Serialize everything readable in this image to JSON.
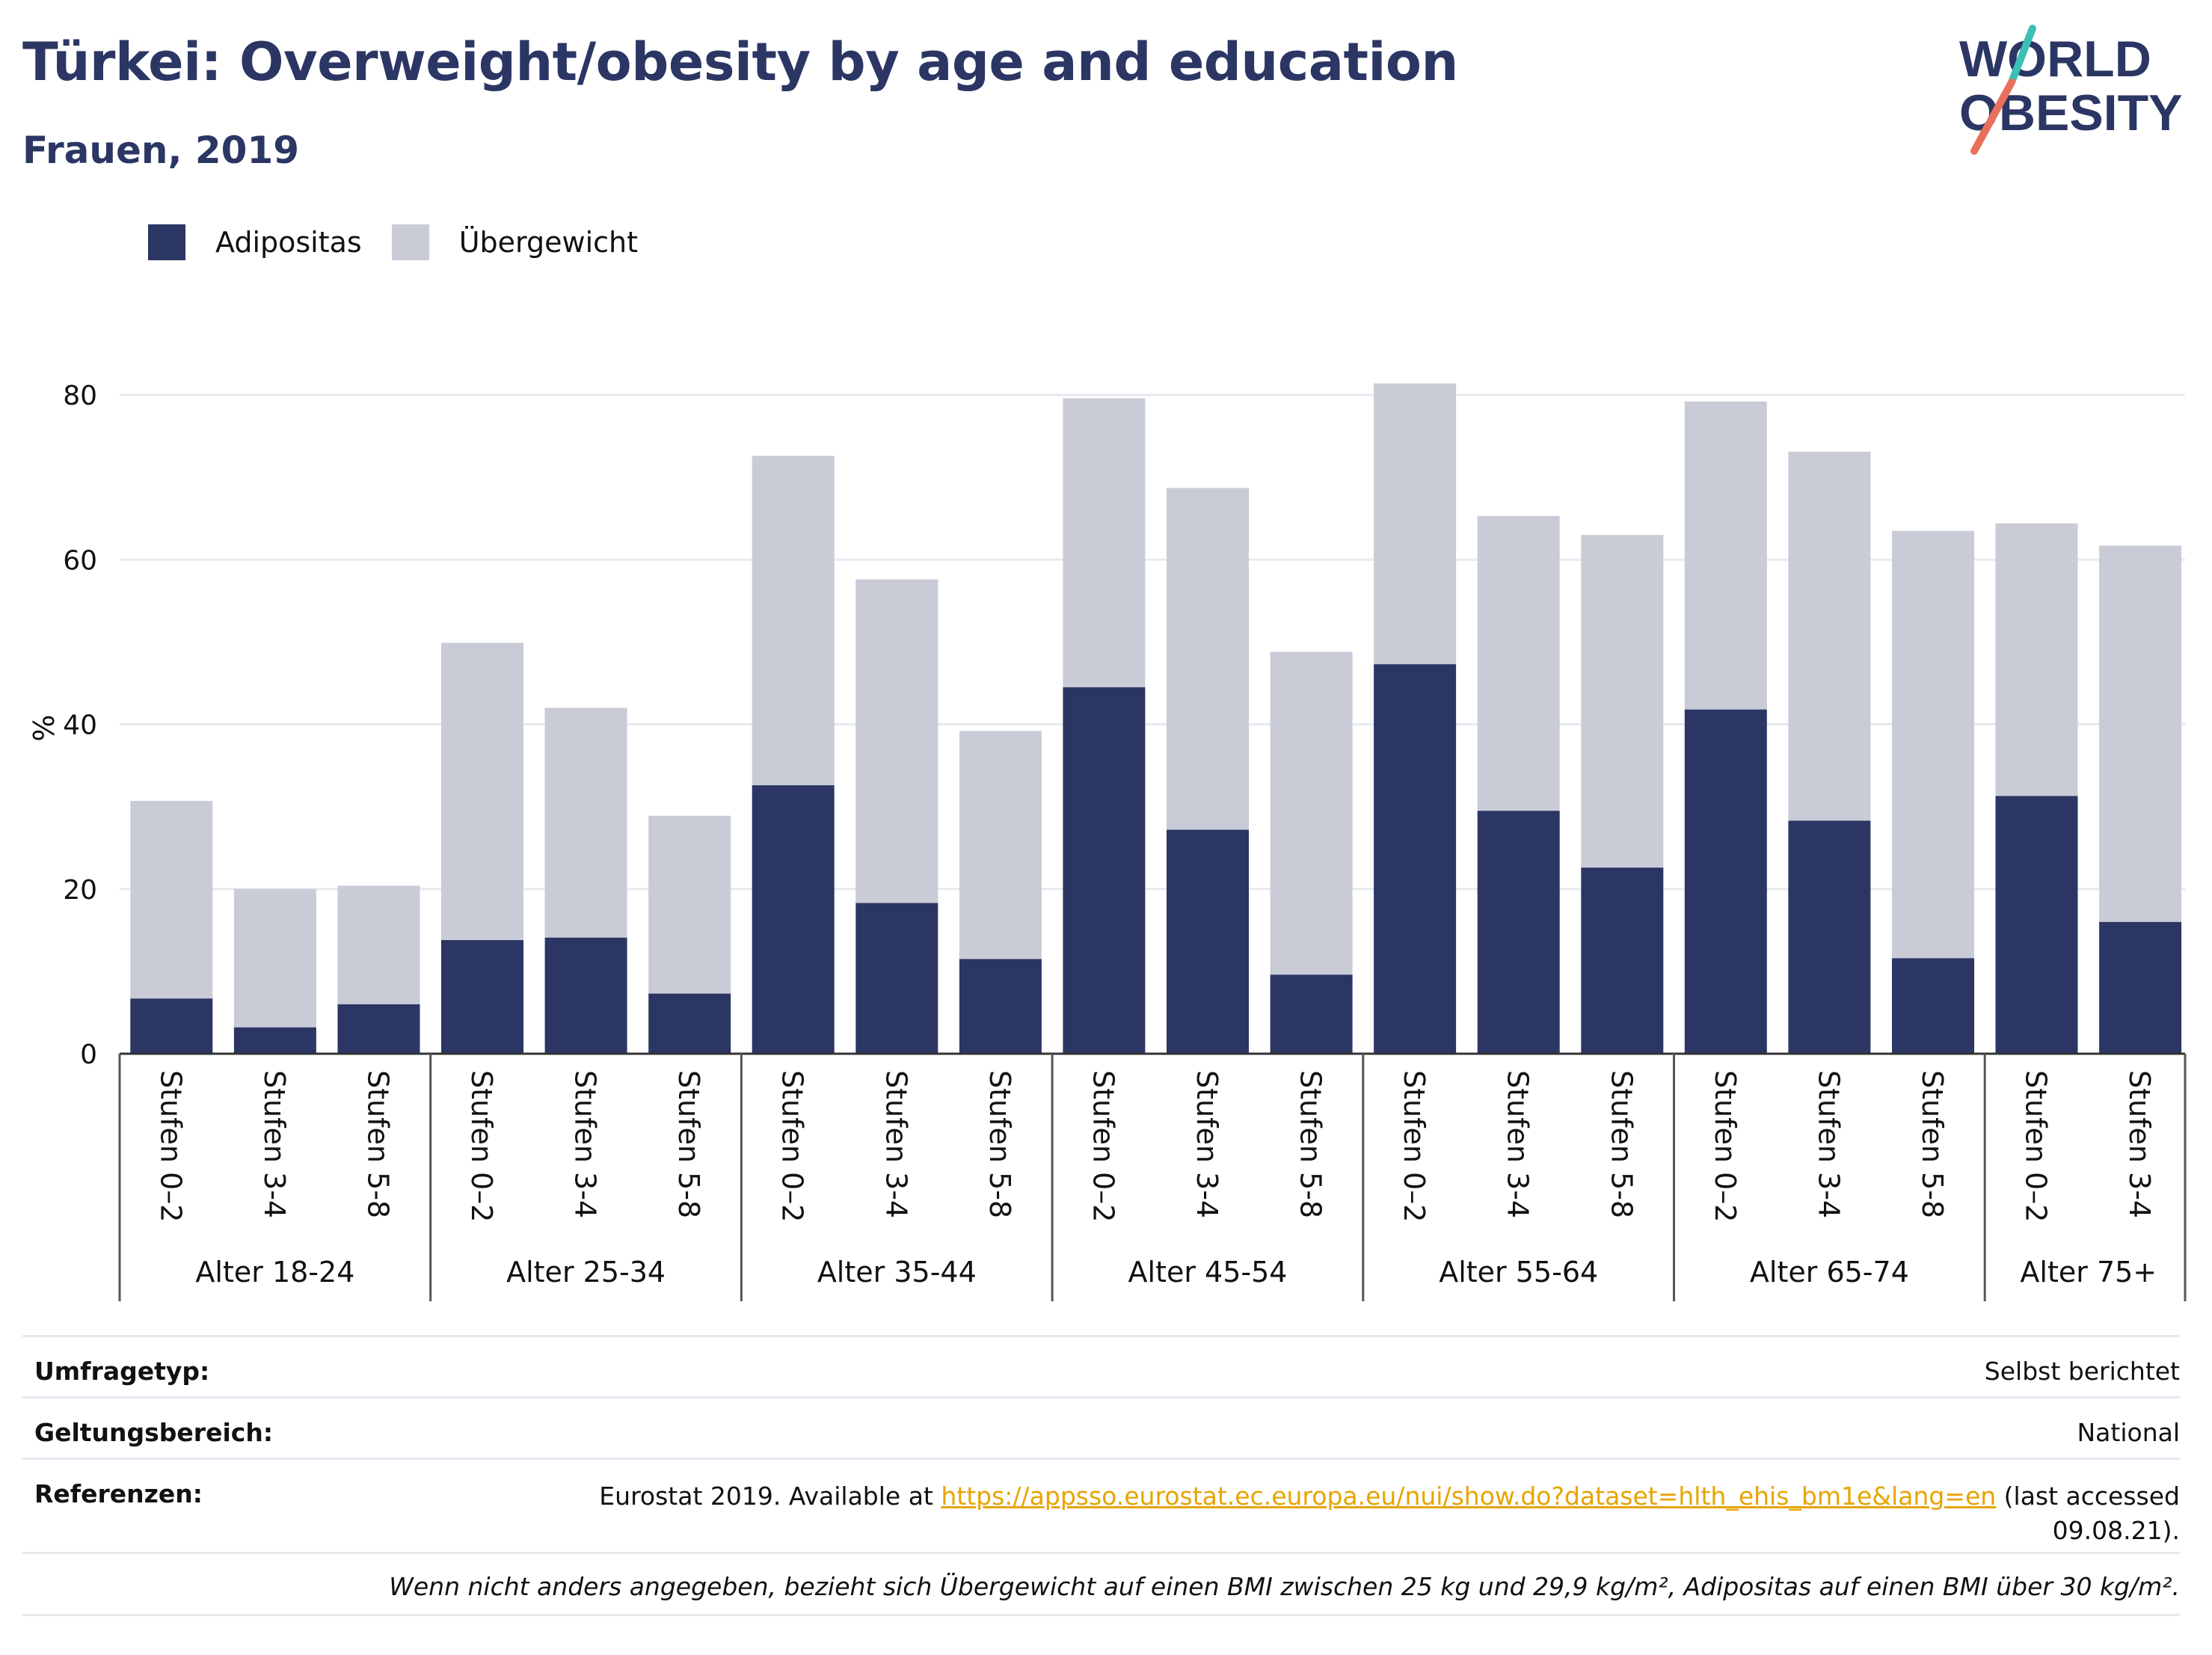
{
  "header": {
    "title": "Türkei: Overweight/obesity by age and education",
    "subtitle": "Frauen, 2019",
    "logo_line1": "WORLD",
    "logo_line2": "OBESITY"
  },
  "legend": [
    {
      "label": "Adipositas",
      "color": "#2b3664"
    },
    {
      "label": "Übergewicht",
      "color": "#c9cbd7"
    }
  ],
  "chart_data": {
    "type": "bar",
    "stacked": true,
    "ylabel": "%",
    "ylim": [
      0,
      88
    ],
    "yticks": [
      0,
      20,
      40,
      60,
      80
    ],
    "grid": true,
    "legend_position": "top-left",
    "groups": [
      {
        "label": "Alter 18-24",
        "categories": [
          "Stufen 0–2",
          "Stufen 3-4",
          "Stufen 5-8"
        ]
      },
      {
        "label": "Alter 25-34",
        "categories": [
          "Stufen 0–2",
          "Stufen 3-4",
          "Stufen 5-8"
        ]
      },
      {
        "label": "Alter 35-44",
        "categories": [
          "Stufen 0–2",
          "Stufen 3-4",
          "Stufen 5-8"
        ]
      },
      {
        "label": "Alter 45-54",
        "categories": [
          "Stufen 0–2",
          "Stufen 3-4",
          "Stufen 5-8"
        ]
      },
      {
        "label": "Alter 55-64",
        "categories": [
          "Stufen 0–2",
          "Stufen 3-4",
          "Stufen 5-8"
        ]
      },
      {
        "label": "Alter 65-74",
        "categories": [
          "Stufen 0–2",
          "Stufen 3-4",
          "Stufen 5-8"
        ]
      },
      {
        "label": "Alter 75+",
        "categories": [
          "Stufen 0–2",
          "Stufen 3-4"
        ]
      }
    ],
    "series": [
      {
        "name": "Adipositas",
        "color": "#2b3664",
        "values": [
          6.7,
          3.2,
          6.0,
          13.8,
          14.1,
          7.3,
          32.6,
          18.3,
          11.5,
          44.5,
          27.2,
          9.6,
          47.3,
          29.5,
          22.6,
          41.8,
          28.3,
          11.6,
          31.3,
          16.0
        ]
      },
      {
        "name": "Übergewicht",
        "color": "#c9cbd7",
        "values": [
          24.0,
          16.8,
          14.4,
          36.1,
          27.9,
          21.6,
          40.0,
          39.3,
          27.7,
          35.1,
          41.5,
          39.2,
          34.1,
          35.8,
          40.4,
          37.4,
          44.8,
          51.9,
          33.1,
          45.7
        ]
      }
    ]
  },
  "meta": {
    "survey_label": "Umfragetyp:",
    "survey_value": "Selbst berichtet",
    "scope_label": "Geltungsbereich:",
    "scope_value": "National",
    "refs_label": "Referenzen:",
    "refs_prefix": "Eurostat 2019. Available at ",
    "refs_link": "https://appsso.eurostat.ec.europa.eu/nui/show.do?dataset=hlth_ehis_bm1e&lang=en",
    "refs_suffix": " (last accessed",
    "refs_date": "09.08.21).",
    "note": "Wenn nicht anders angegeben, bezieht sich Übergewicht auf einen BMI zwischen 25 kg und 29,9 kg/m², Adipositas auf einen BMI über 30 kg/m²."
  }
}
